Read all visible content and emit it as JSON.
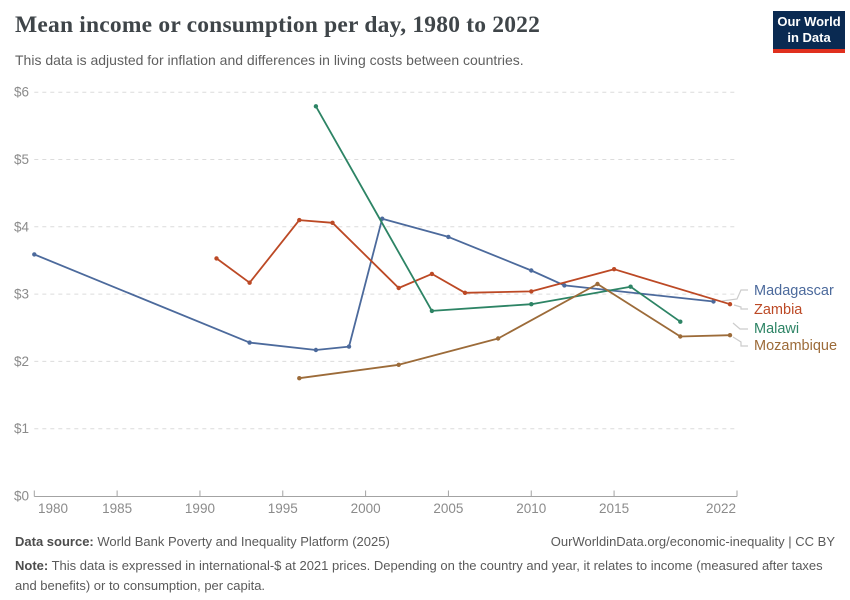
{
  "header": {
    "title": "Mean income or consumption per day, 1980 to 2022",
    "subtitle": "This data is adjusted for inflation and differences in living costs between countries.",
    "logo": {
      "line1": "Our World",
      "line2": "in Data",
      "bg_color": "#0a2a52",
      "accent_color": "#e0301e"
    }
  },
  "chart_data": {
    "type": "line",
    "title": "Mean income or consumption per day, 1980 to 2022",
    "xlabel": "",
    "ylabel": "",
    "x_axis": {
      "min": 1980,
      "max": 2022,
      "ticks": [
        1980,
        1985,
        1990,
        1995,
        2000,
        2005,
        2010,
        2015,
        2022
      ]
    },
    "y_axis": {
      "min": 0,
      "max": 6,
      "ticks": [
        0,
        1,
        2,
        3,
        4,
        5,
        6
      ],
      "tick_prefix": "$",
      "grid": true
    },
    "legend_position": "right",
    "series": [
      {
        "name": "Madagascar",
        "color": "#4C6A9C",
        "points": [
          [
            1980,
            3.59
          ],
          [
            1993,
            2.28
          ],
          [
            1997,
            2.17
          ],
          [
            1999,
            2.22
          ],
          [
            2001,
            4.12
          ],
          [
            2005,
            3.85
          ],
          [
            2010,
            3.35
          ],
          [
            2012,
            3.13
          ],
          [
            2021,
            2.89
          ]
        ]
      },
      {
        "name": "Zambia",
        "color": "#BC4925",
        "points": [
          [
            1991,
            3.53
          ],
          [
            1993,
            3.17
          ],
          [
            1996,
            4.1
          ],
          [
            1998,
            4.06
          ],
          [
            2002,
            3.09
          ],
          [
            2004,
            3.3
          ],
          [
            2006,
            3.02
          ],
          [
            2010,
            3.04
          ],
          [
            2015,
            3.37
          ],
          [
            2022,
            2.85
          ]
        ]
      },
      {
        "name": "Malawi",
        "color": "#2D8465",
        "points": [
          [
            1997,
            5.79
          ],
          [
            2004,
            2.75
          ],
          [
            2010,
            2.85
          ],
          [
            2016,
            3.11
          ],
          [
            2019,
            2.59
          ]
        ]
      },
      {
        "name": "Mozambique",
        "color": "#9C6B39",
        "points": [
          [
            1996,
            1.75
          ],
          [
            2002,
            1.95
          ],
          [
            2008,
            2.34
          ],
          [
            2014,
            3.15
          ],
          [
            2019,
            2.37
          ],
          [
            2022,
            2.39
          ]
        ]
      }
    ]
  },
  "footer": {
    "source_label": "Data source:",
    "source_value": "World Bank Poverty and Inequality Platform (2025)",
    "link": "OurWorldinData.org/economic-inequality | CC BY",
    "note_label": "Note:",
    "note_text": "This data is expressed in international-$ at 2021 prices. Depending on the country and year, it relates to income (measured after taxes and benefits) or to consumption, per capita."
  }
}
